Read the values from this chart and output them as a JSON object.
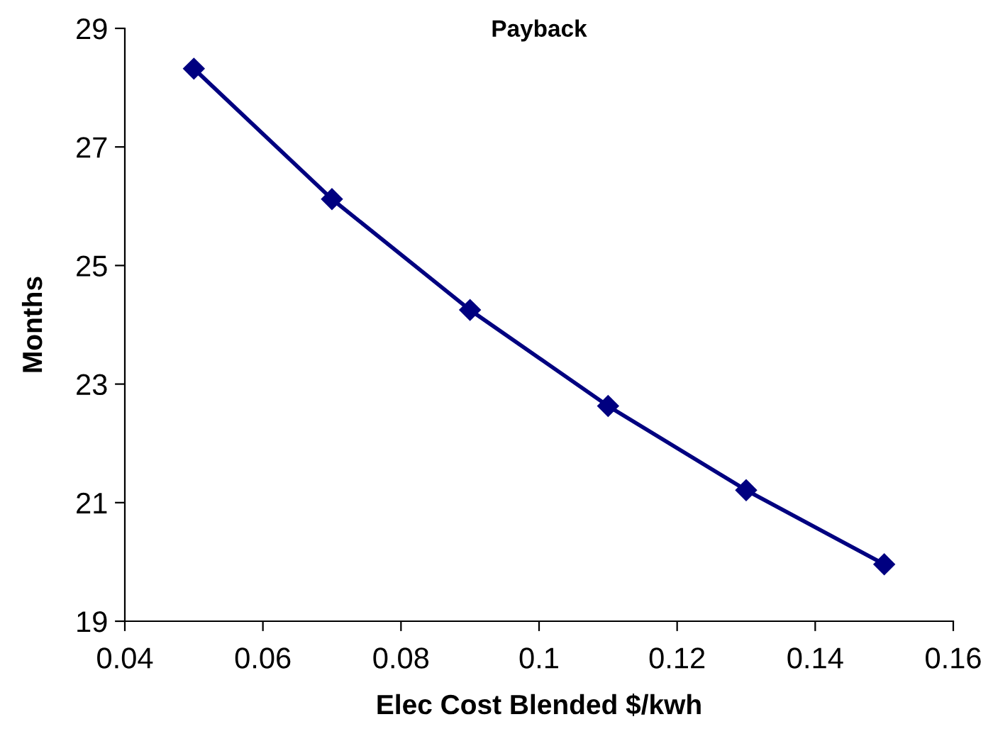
{
  "chart_data": {
    "type": "line",
    "title": "Payback",
    "xlabel": "Elec Cost Blended $/kwh",
    "ylabel": "Months",
    "x": [
      0.05,
      0.07,
      0.09,
      0.11,
      0.13,
      0.15
    ],
    "series": [
      {
        "color": "#000080",
        "values": [
          28.32,
          26.12,
          24.25,
          22.63,
          21.21,
          19.96
        ]
      }
    ],
    "xlim": [
      0.04,
      0.16
    ],
    "xticks": [
      {
        "value": 0.04,
        "label": "0.04"
      },
      {
        "value": 0.06,
        "label": "0.06"
      },
      {
        "value": 0.08,
        "label": "0.08"
      },
      {
        "value": 0.1,
        "label": "0.1"
      },
      {
        "value": 0.12,
        "label": "0.12"
      },
      {
        "value": 0.14,
        "label": "0.14"
      },
      {
        "value": 0.16,
        "label": "0.16"
      }
    ],
    "ylim": [
      19,
      29
    ],
    "yticks": [
      19,
      21,
      23,
      25,
      27,
      29
    ],
    "grid": false,
    "marker": "diamond",
    "line_style": "solid"
  }
}
